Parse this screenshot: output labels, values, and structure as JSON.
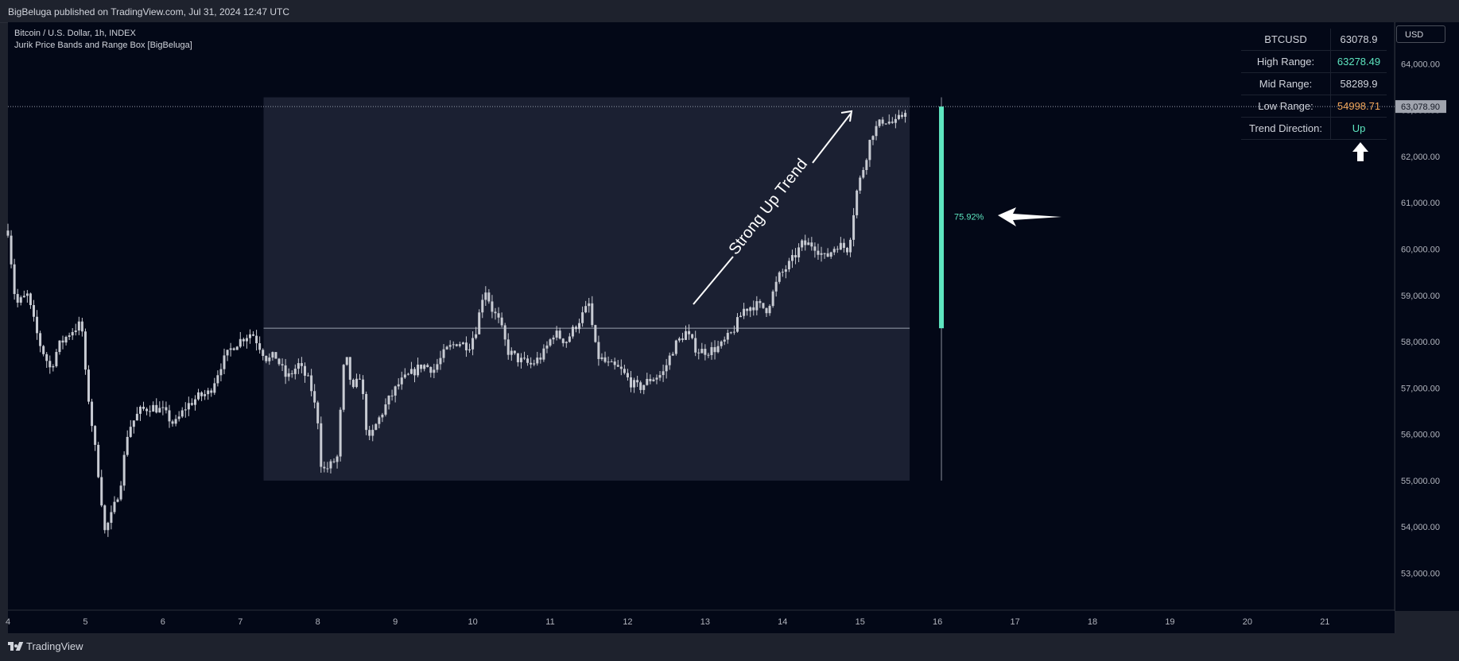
{
  "header": {
    "published": "BigBeluga published on TradingView.com, Jul 31, 2024 12:47 UTC"
  },
  "symbol": {
    "title": "Bitcoin / U.S. Dollar, 1h, INDEX",
    "indicator": "Jurik Price Bands and Range Box [BigBeluga]"
  },
  "currency_label": "USD",
  "footer": {
    "brand": "TradingView"
  },
  "colors": {
    "background": "#030817",
    "panel": "#1e222d",
    "candle": "#c8cbd3",
    "range_bar": "#5ee6c0",
    "high": "#5ee6c0",
    "low": "#f2a65a",
    "text": "#d1d4dc"
  },
  "info_table": {
    "rows": [
      {
        "label": "BTCUSD",
        "value": "63078.9",
        "color": "#d1d4dc"
      },
      {
        "label": "High Range:",
        "value": "63278.49",
        "color": "#5ee6c0"
      },
      {
        "label": "Mid Range:",
        "value": "58289.9",
        "color": "#d1d4dc"
      },
      {
        "label": "Low Range:",
        "value": "54998.71",
        "color": "#f2a65a"
      },
      {
        "label": "Trend Direction:",
        "value": "Up",
        "color": "#5ee6c0"
      }
    ],
    "trend_icon": "arrow-up-icon"
  },
  "chart_data": {
    "type": "candlestick",
    "title": "Bitcoin / U.S. Dollar, 1h, INDEX",
    "x_ticks": [
      "4",
      "5",
      "6",
      "7",
      "8",
      "9",
      "10",
      "11",
      "12",
      "13",
      "14",
      "15",
      "16",
      "17",
      "18",
      "19",
      "20",
      "21"
    ],
    "y_ticks": [
      53000,
      54000,
      55000,
      56000,
      57000,
      58000,
      59000,
      60000,
      61000,
      62000,
      63000,
      64000
    ],
    "y_tick_labels": [
      "53,000.00",
      "54,000.00",
      "55,000.00",
      "56,000.00",
      "57,000.00",
      "58,000.00",
      "59,000.00",
      "60,000.00",
      "61,000.00",
      "62,000.00",
      "63,000.00",
      "64,000.00"
    ],
    "ylim": [
      52200,
      64900
    ],
    "xlim": [
      4.0,
      21.9
    ],
    "last_price": 63078.9,
    "last_price_label": "63,078.90",
    "range_box": {
      "x_start": 7.3,
      "x_end": 15.64,
      "high": 63278.49,
      "low": 54998.71,
      "mid": 58289.9
    },
    "range_bar": {
      "x": 16.05,
      "value_top": 63078.9,
      "value_bottom": 58289.9,
      "wick_top": 63278.49,
      "wick_bottom": 54998.71,
      "label": "75.92%"
    },
    "annotation": {
      "text": "Strong Up Trend"
    },
    "price_path": [
      [
        4.0,
        60400
      ],
      [
        4.1,
        58800
      ],
      [
        4.25,
        59000
      ],
      [
        4.4,
        58000
      ],
      [
        4.55,
        57400
      ],
      [
        4.65,
        57900
      ],
      [
        4.8,
        58200
      ],
      [
        4.95,
        58400
      ],
      [
        5.0,
        57300
      ],
      [
        5.1,
        56000
      ],
      [
        5.18,
        55000
      ],
      [
        5.25,
        53900
      ],
      [
        5.35,
        54300
      ],
      [
        5.45,
        54900
      ],
      [
        5.55,
        56100
      ],
      [
        5.7,
        56500
      ],
      [
        5.85,
        56600
      ],
      [
        6.0,
        56500
      ],
      [
        6.15,
        56200
      ],
      [
        6.3,
        56600
      ],
      [
        6.45,
        56800
      ],
      [
        6.6,
        56900
      ],
      [
        6.75,
        57500
      ],
      [
        6.9,
        57900
      ],
      [
        7.05,
        58100
      ],
      [
        7.15,
        58200
      ],
      [
        7.25,
        57900
      ],
      [
        7.35,
        57600
      ],
      [
        7.45,
        57700
      ],
      [
        7.6,
        57200
      ],
      [
        7.75,
        57500
      ],
      [
        7.9,
        57100
      ],
      [
        8.0,
        56300
      ],
      [
        8.05,
        55200
      ],
      [
        8.15,
        55300
      ],
      [
        8.25,
        55500
      ],
      [
        8.35,
        57800
      ],
      [
        8.45,
        56900
      ],
      [
        8.55,
        57300
      ],
      [
        8.65,
        55800
      ],
      [
        8.75,
        56200
      ],
      [
        8.9,
        56700
      ],
      [
        9.05,
        57100
      ],
      [
        9.2,
        57300
      ],
      [
        9.35,
        57500
      ],
      [
        9.5,
        57400
      ],
      [
        9.65,
        57800
      ],
      [
        9.8,
        58000
      ],
      [
        9.95,
        57900
      ],
      [
        10.05,
        58300
      ],
      [
        10.15,
        59200
      ],
      [
        10.25,
        58700
      ],
      [
        10.35,
        58400
      ],
      [
        10.45,
        57800
      ],
      [
        10.6,
        57600
      ],
      [
        10.75,
        57500
      ],
      [
        10.9,
        57700
      ],
      [
        11.05,
        58200
      ],
      [
        11.2,
        58000
      ],
      [
        11.35,
        58400
      ],
      [
        11.5,
        58800
      ],
      [
        11.6,
        57700
      ],
      [
        11.75,
        57500
      ],
      [
        11.9,
        57400
      ],
      [
        12.05,
        57100
      ],
      [
        12.15,
        57000
      ],
      [
        12.3,
        57200
      ],
      [
        12.45,
        57300
      ],
      [
        12.6,
        57900
      ],
      [
        12.75,
        58200
      ],
      [
        12.9,
        57800
      ],
      [
        13.05,
        57800
      ],
      [
        13.2,
        57900
      ],
      [
        13.35,
        58200
      ],
      [
        13.5,
        58700
      ],
      [
        13.65,
        58800
      ],
      [
        13.8,
        58700
      ],
      [
        13.95,
        59400
      ],
      [
        14.1,
        59700
      ],
      [
        14.25,
        60100
      ],
      [
        14.4,
        60100
      ],
      [
        14.55,
        59800
      ],
      [
        14.7,
        60100
      ],
      [
        14.85,
        60000
      ],
      [
        14.95,
        61200
      ],
      [
        15.05,
        61800
      ],
      [
        15.15,
        62500
      ],
      [
        15.3,
        62800
      ],
      [
        15.45,
        62700
      ],
      [
        15.55,
        62900
      ],
      [
        15.62,
        63150
      ]
    ]
  }
}
